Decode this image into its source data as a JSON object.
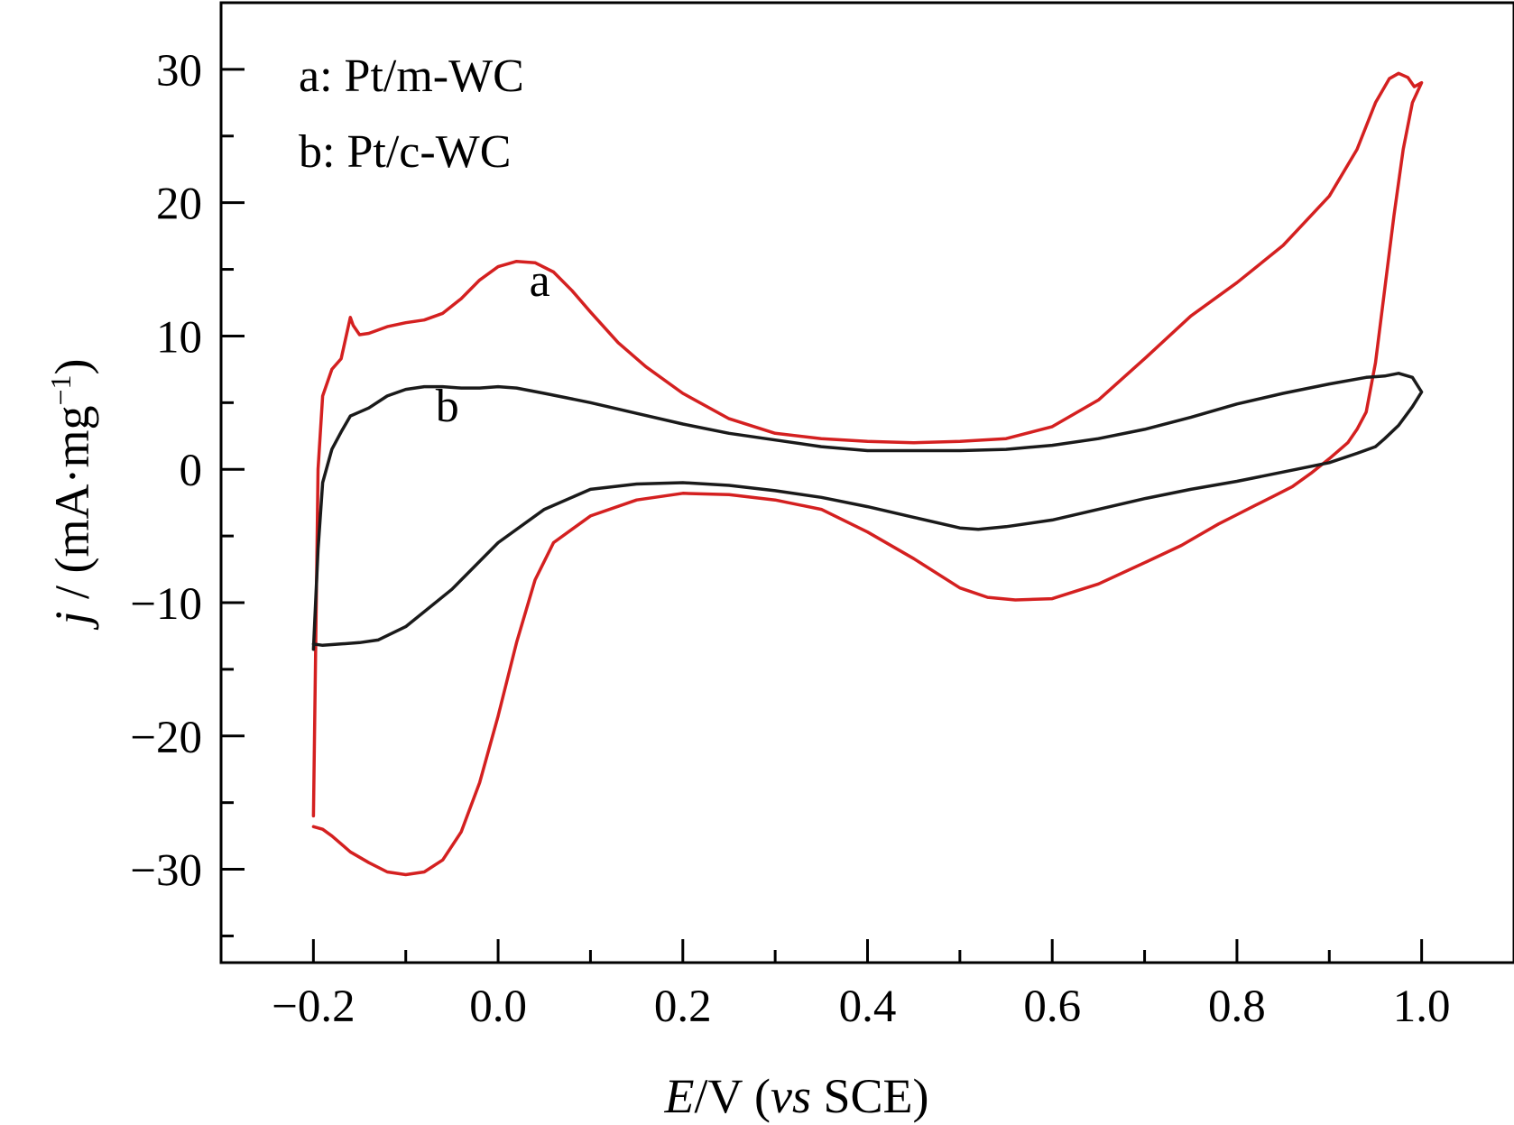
{
  "chart_data": {
    "type": "line",
    "xlabel": {
      "italic_symbol": "E",
      "unit": "/V (",
      "vs": "vs",
      "ref": " SCE)"
    },
    "ylabel": {
      "italic_symbol": "j",
      "text": " / (mA·mg",
      "sup": "−1",
      "close": ")"
    },
    "xlim": [
      -0.3,
      1.1
    ],
    "ylim": [
      -37,
      35
    ],
    "x_ticks": [
      {
        "value": -0.2,
        "label": "−0.2"
      },
      {
        "value": 0.0,
        "label": "0.0"
      },
      {
        "value": 0.2,
        "label": "0.2"
      },
      {
        "value": 0.4,
        "label": "0.4"
      },
      {
        "value": 0.6,
        "label": "0.6"
      },
      {
        "value": 0.8,
        "label": "0.8"
      },
      {
        "value": 1.0,
        "label": "1.0"
      }
    ],
    "x_minor_ticks": [
      -0.1,
      0.1,
      0.3,
      0.5,
      0.7,
      0.9
    ],
    "y_ticks": [
      {
        "value": 30,
        "label": "30"
      },
      {
        "value": 20,
        "label": "20"
      },
      {
        "value": 10,
        "label": "10"
      },
      {
        "value": 0,
        "label": "0"
      },
      {
        "value": -10,
        "label": "−10"
      },
      {
        "value": -20,
        "label": "−20"
      },
      {
        "value": -30,
        "label": "−30"
      }
    ],
    "y_minor_ticks": [
      35,
      25,
      15,
      5,
      -5,
      -15,
      -25,
      -35
    ],
    "legend": {
      "placement": "top-left",
      "entries": [
        "a: Pt/m-WC",
        "b: Pt/c-WC"
      ]
    },
    "series": [
      {
        "label": "a",
        "color": "#d42020",
        "x": [
          -0.2,
          -0.195,
          -0.19,
          -0.18,
          -0.17,
          -0.16,
          -0.157,
          -0.15,
          -0.14,
          -0.12,
          -0.1,
          -0.08,
          -0.06,
          -0.04,
          -0.02,
          0.0,
          0.02,
          0.04,
          0.06,
          0.08,
          0.1,
          0.13,
          0.16,
          0.2,
          0.25,
          0.3,
          0.35,
          0.4,
          0.45,
          0.5,
          0.55,
          0.6,
          0.65,
          0.7,
          0.75,
          0.8,
          0.85,
          0.9,
          0.93,
          0.95,
          0.965,
          0.975,
          0.985,
          0.992,
          1.0,
          0.99,
          0.98,
          0.97,
          0.96,
          0.95,
          0.94,
          0.93,
          0.92,
          0.9,
          0.88,
          0.86,
          0.84,
          0.82,
          0.8,
          0.78,
          0.76,
          0.74,
          0.7,
          0.65,
          0.6,
          0.56,
          0.53,
          0.5,
          0.45,
          0.4,
          0.35,
          0.3,
          0.25,
          0.2,
          0.15,
          0.1,
          0.06,
          0.04,
          0.02,
          0.0,
          -0.02,
          -0.04,
          -0.06,
          -0.08,
          -0.1,
          -0.12,
          -0.14,
          -0.16,
          -0.18,
          -0.19,
          -0.2
        ],
        "y": [
          -26.0,
          0.0,
          5.5,
          7.5,
          8.3,
          11.4,
          10.8,
          10.1,
          10.2,
          10.7,
          11.0,
          11.2,
          11.7,
          12.8,
          14.2,
          15.2,
          15.6,
          15.5,
          14.8,
          13.4,
          11.8,
          9.5,
          7.7,
          5.7,
          3.8,
          2.7,
          2.3,
          2.1,
          2.0,
          2.1,
          2.3,
          3.2,
          5.2,
          8.3,
          11.5,
          14.0,
          16.8,
          20.5,
          24.0,
          27.5,
          29.3,
          29.7,
          29.4,
          28.7,
          29.0,
          27.5,
          24.0,
          19.0,
          13.5,
          8.0,
          4.3,
          3.0,
          2.0,
          0.8,
          -0.3,
          -1.3,
          -2.0,
          -2.7,
          -3.4,
          -4.1,
          -4.9,
          -5.7,
          -7.0,
          -8.6,
          -9.7,
          -9.8,
          -9.6,
          -8.9,
          -6.7,
          -4.7,
          -3.0,
          -2.3,
          -1.9,
          -1.8,
          -2.3,
          -3.5,
          -5.5,
          -8.3,
          -13.0,
          -18.5,
          -23.5,
          -27.2,
          -29.3,
          -30.2,
          -30.4,
          -30.2,
          -29.5,
          -28.7,
          -27.5,
          -27.0,
          -26.8
        ]
      },
      {
        "label": "b",
        "color": "#1a1a1a",
        "x": [
          -0.2,
          -0.195,
          -0.19,
          -0.18,
          -0.17,
          -0.16,
          -0.15,
          -0.14,
          -0.12,
          -0.1,
          -0.08,
          -0.06,
          -0.04,
          -0.02,
          0.0,
          0.02,
          0.05,
          0.1,
          0.15,
          0.2,
          0.25,
          0.3,
          0.35,
          0.4,
          0.45,
          0.5,
          0.55,
          0.6,
          0.65,
          0.7,
          0.75,
          0.8,
          0.85,
          0.9,
          0.94,
          0.96,
          0.975,
          0.99,
          1.0,
          0.99,
          0.975,
          0.96,
          0.95,
          0.93,
          0.9,
          0.85,
          0.8,
          0.75,
          0.7,
          0.65,
          0.6,
          0.55,
          0.52,
          0.5,
          0.45,
          0.4,
          0.35,
          0.3,
          0.25,
          0.2,
          0.15,
          0.1,
          0.05,
          0.0,
          -0.05,
          -0.1,
          -0.13,
          -0.15,
          -0.17,
          -0.19,
          -0.2
        ],
        "y": [
          -13.5,
          -6.0,
          -1.0,
          1.5,
          2.8,
          4.0,
          4.3,
          4.6,
          5.5,
          6.0,
          6.2,
          6.2,
          6.1,
          6.1,
          6.2,
          6.1,
          5.7,
          5.0,
          4.2,
          3.4,
          2.7,
          2.2,
          1.7,
          1.4,
          1.4,
          1.4,
          1.5,
          1.8,
          2.3,
          3.0,
          3.9,
          4.9,
          5.7,
          6.4,
          6.9,
          7.0,
          7.2,
          6.9,
          5.8,
          4.7,
          3.3,
          2.3,
          1.7,
          1.2,
          0.5,
          -0.2,
          -0.9,
          -1.5,
          -2.2,
          -3.0,
          -3.8,
          -4.3,
          -4.5,
          -4.4,
          -3.6,
          -2.8,
          -2.1,
          -1.6,
          -1.2,
          -1.0,
          -1.1,
          -1.5,
          -3.0,
          -5.5,
          -9.0,
          -11.8,
          -12.8,
          -13.0,
          -13.1,
          -13.2,
          -13.1
        ]
      }
    ],
    "curve_labels": [
      {
        "text": "a",
        "x": 0.045,
        "y": 13.0
      },
      {
        "text": "b",
        "x": -0.055,
        "y": 3.6
      }
    ]
  }
}
